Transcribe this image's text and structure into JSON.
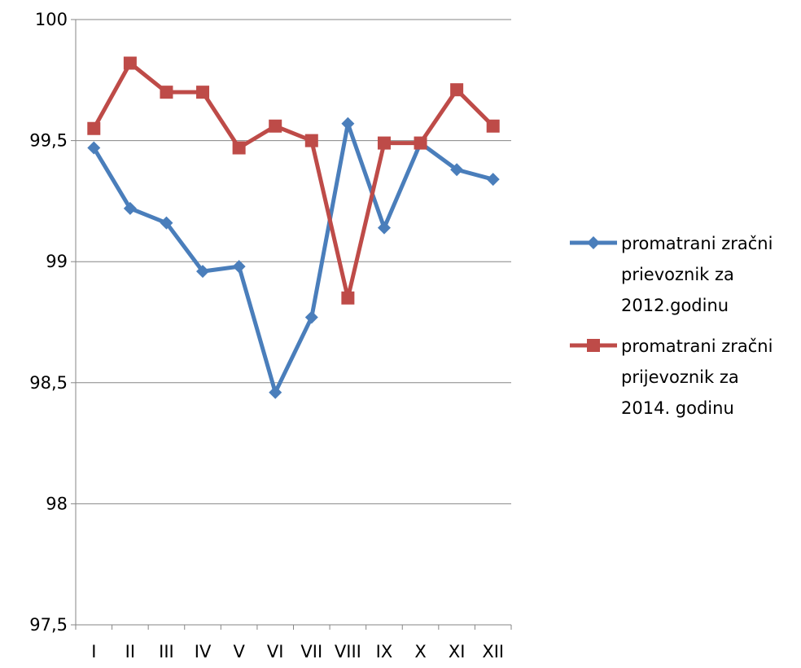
{
  "chart_data": {
    "type": "line",
    "categories": [
      "I",
      "II",
      "III",
      "IV",
      "V",
      "VI",
      "VII",
      "VIII",
      "IX",
      "X",
      "XI",
      "XII"
    ],
    "ylim": [
      97.5,
      100
    ],
    "yticks": [
      97.5,
      98,
      98.5,
      99,
      99.5,
      100
    ],
    "ytick_labels": [
      "97,5",
      "98",
      "98,5",
      "99",
      "99,5",
      "100"
    ],
    "grid": true,
    "legend_position": "right",
    "series": [
      {
        "legend_lines": [
          "promatrani zračni",
          "prievoznik za",
          "2012.godinu"
        ],
        "color": "#4a7ebb",
        "marker": "diamond",
        "values": [
          99.47,
          99.22,
          99.16,
          98.96,
          98.98,
          98.46,
          98.77,
          99.57,
          99.14,
          99.49,
          99.38,
          99.34
        ]
      },
      {
        "legend_lines": [
          "promatrani zračni",
          "prijevoznik za",
          "2014. godinu"
        ],
        "color": "#be4b48",
        "marker": "square",
        "values": [
          99.55,
          99.82,
          99.7,
          99.7,
          99.47,
          99.56,
          99.5,
          98.85,
          99.49,
          99.49,
          99.71,
          99.56
        ]
      }
    ]
  }
}
